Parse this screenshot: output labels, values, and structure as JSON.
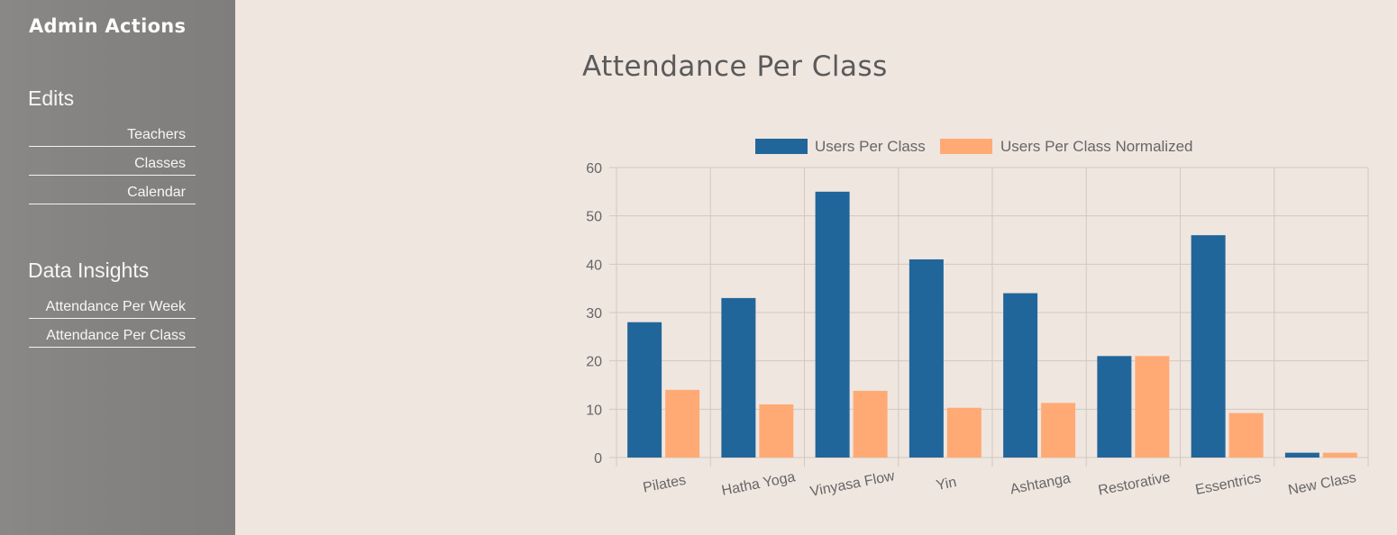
{
  "sidebar": {
    "title": "Admin Actions",
    "sections": [
      {
        "heading": "Edits",
        "items": [
          {
            "label": "Teachers"
          },
          {
            "label": "Classes"
          },
          {
            "label": "Calendar"
          }
        ]
      },
      {
        "heading": "Data Insights",
        "items": [
          {
            "label": "Attendance Per Week"
          },
          {
            "label": "Attendance Per Class"
          }
        ]
      }
    ]
  },
  "main": {
    "title": "Attendance Per Class"
  },
  "colors": {
    "series1": "#21669a",
    "series2": "#ffaa75",
    "grid": "#d2c8c2",
    "text": "#666666"
  },
  "chart_data": {
    "type": "bar",
    "categories": [
      "Pilates",
      "Hatha Yoga",
      "Vinyasa Flow",
      "Yin",
      "Ashtanga",
      "Restorative",
      "Essentrics",
      "New Class"
    ],
    "series": [
      {
        "name": "Users Per Class",
        "values": [
          28,
          33,
          55,
          41,
          34,
          21,
          46,
          1
        ]
      },
      {
        "name": "Users Per Class Normalized",
        "values": [
          14,
          11,
          13.8,
          10.3,
          11.3,
          21,
          9.2,
          1
        ]
      }
    ],
    "ylim": [
      0,
      60
    ],
    "yticks": [
      0,
      10,
      20,
      30,
      40,
      50,
      60
    ],
    "grid": true,
    "legend": "top"
  }
}
